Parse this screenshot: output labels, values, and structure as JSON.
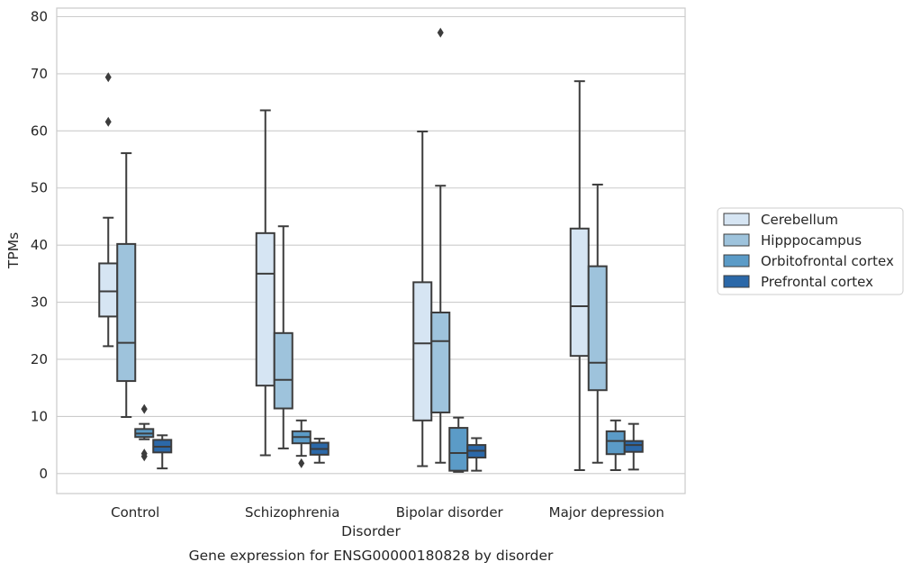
{
  "chart_data": {
    "type": "box",
    "title": "",
    "caption": "Gene expression for ENSG00000180828 by disorder",
    "xlabel": "Disorder",
    "ylabel": "TPMs",
    "ylim": [
      -3.5,
      81.5
    ],
    "yticks": [
      0,
      10,
      20,
      30,
      40,
      50,
      60,
      70,
      80
    ],
    "grid": "horizontal",
    "legend_position": "right",
    "categories": [
      "Control",
      "Schizophrenia",
      "Bipolar disorder",
      "Major depression"
    ],
    "series": [
      {
        "name": "Cerebellum",
        "color": "#d6e5f3",
        "boxes": [
          {
            "whisker_low": 22.3,
            "q1": 27.5,
            "median": 31.9,
            "q3": 36.8,
            "whisker_high": 44.8,
            "outliers": [
              61.6,
              69.4
            ]
          },
          {
            "whisker_low": 3.2,
            "q1": 15.4,
            "median": 35.0,
            "q3": 42.1,
            "whisker_high": 63.6,
            "outliers": []
          },
          {
            "whisker_low": 1.3,
            "q1": 9.3,
            "median": 22.8,
            "q3": 33.5,
            "whisker_high": 59.9,
            "outliers": []
          },
          {
            "whisker_low": 0.6,
            "q1": 20.6,
            "median": 29.3,
            "q3": 42.9,
            "whisker_high": 68.7,
            "outliers": []
          }
        ]
      },
      {
        "name": "Hipppocampus",
        "color": "#9ec3dc",
        "boxes": [
          {
            "whisker_low": 9.9,
            "q1": 16.2,
            "median": 22.9,
            "q3": 40.2,
            "whisker_high": 56.1,
            "outliers": []
          },
          {
            "whisker_low": 4.4,
            "q1": 11.4,
            "median": 16.4,
            "q3": 24.6,
            "whisker_high": 43.3,
            "outliers": []
          },
          {
            "whisker_low": 1.9,
            "q1": 10.7,
            "median": 23.2,
            "q3": 28.2,
            "whisker_high": 50.4,
            "outliers": [
              77.2
            ]
          },
          {
            "whisker_low": 1.9,
            "q1": 14.6,
            "median": 19.4,
            "q3": 36.3,
            "whisker_high": 50.6,
            "outliers": []
          }
        ]
      },
      {
        "name": "Orbitofrontal cortex",
        "color": "#5b9bc7",
        "boxes": [
          {
            "whisker_low": 6.0,
            "q1": 6.4,
            "median": 7.0,
            "q3": 7.8,
            "whisker_high": 8.7,
            "outliers": [
              3.0,
              3.5,
              11.3
            ]
          },
          {
            "whisker_low": 3.1,
            "q1": 5.3,
            "median": 6.4,
            "q3": 7.4,
            "whisker_high": 9.3,
            "outliers": [
              1.8
            ]
          },
          {
            "whisker_low": 0.3,
            "q1": 0.5,
            "median": 3.6,
            "q3": 8.0,
            "whisker_high": 9.8,
            "outliers": []
          },
          {
            "whisker_low": 0.6,
            "q1": 3.4,
            "median": 5.7,
            "q3": 7.4,
            "whisker_high": 9.3,
            "outliers": []
          }
        ]
      },
      {
        "name": "Prefrontal cortex",
        "color": "#2b68a8",
        "boxes": [
          {
            "whisker_low": 0.9,
            "q1": 3.7,
            "median": 4.7,
            "q3": 5.9,
            "whisker_high": 6.7,
            "outliers": []
          },
          {
            "whisker_low": 1.9,
            "q1": 3.3,
            "median": 4.3,
            "q3": 5.4,
            "whisker_high": 6.1,
            "outliers": []
          },
          {
            "whisker_low": 0.5,
            "q1": 2.8,
            "median": 4.0,
            "q3": 5.0,
            "whisker_high": 6.2,
            "outliers": []
          },
          {
            "whisker_low": 0.7,
            "q1": 3.8,
            "median": 5.0,
            "q3": 5.7,
            "whisker_high": 8.7,
            "outliers": []
          }
        ]
      }
    ]
  }
}
